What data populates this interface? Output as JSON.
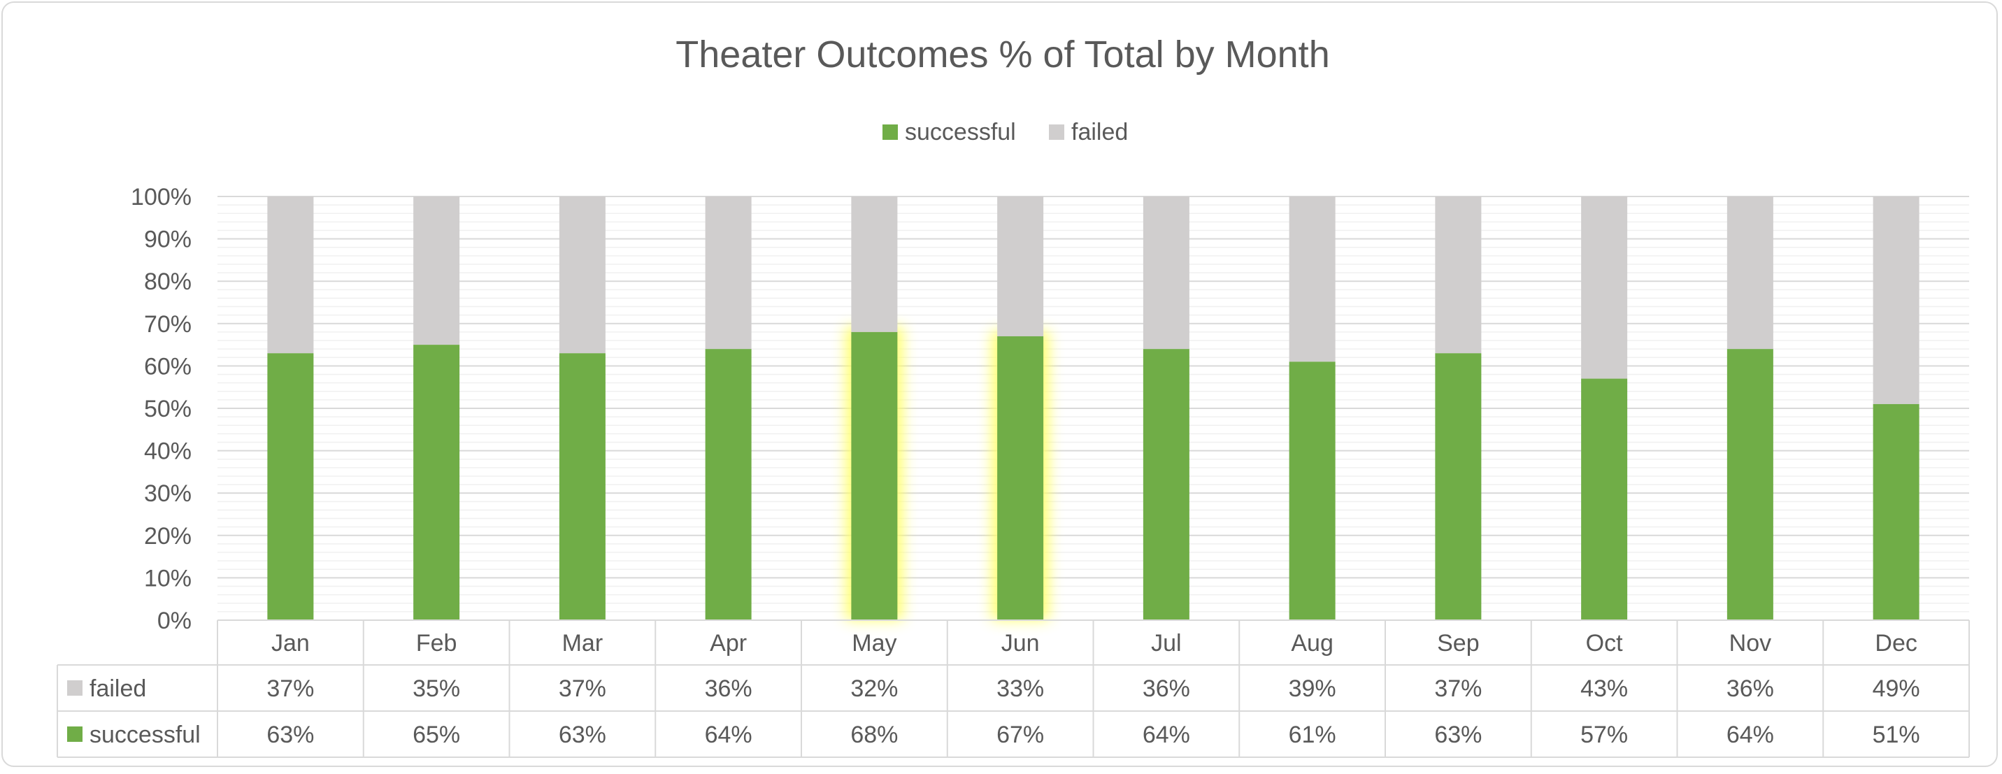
{
  "chart_data": {
    "type": "bar",
    "stacked": true,
    "percent_stacked": true,
    "title": "Theater Outcomes % of Total by Month",
    "categories": [
      "Jan",
      "Feb",
      "Mar",
      "Apr",
      "May",
      "Jun",
      "Jul",
      "Aug",
      "Sep",
      "Oct",
      "Nov",
      "Dec"
    ],
    "series": [
      {
        "name": "successful",
        "values": [
          63,
          65,
          63,
          64,
          68,
          67,
          64,
          61,
          63,
          57,
          64,
          51
        ],
        "color": "#70ad47"
      },
      {
        "name": "failed",
        "values": [
          37,
          35,
          37,
          36,
          32,
          33,
          36,
          39,
          37,
          43,
          36,
          49
        ],
        "color": "#d0cece"
      }
    ],
    "legend_order": [
      "successful",
      "failed"
    ],
    "table_rows": [
      {
        "name": "failed",
        "labels": [
          "37%",
          "35%",
          "37%",
          "36%",
          "32%",
          "33%",
          "36%",
          "39%",
          "37%",
          "43%",
          "36%",
          "49%"
        ]
      },
      {
        "name": "successful",
        "labels": [
          "63%",
          "65%",
          "63%",
          "64%",
          "68%",
          "67%",
          "64%",
          "61%",
          "63%",
          "57%",
          "64%",
          "51%"
        ]
      }
    ],
    "y_ticks": [
      "0%",
      "10%",
      "20%",
      "30%",
      "40%",
      "50%",
      "60%",
      "70%",
      "80%",
      "90%",
      "100%"
    ],
    "ylim": [
      0,
      100
    ],
    "highlighted_categories": [
      "May",
      "Jun"
    ],
    "highlight_color": "#ffff66",
    "grid": true,
    "legend_position": "top",
    "data_table": true
  }
}
